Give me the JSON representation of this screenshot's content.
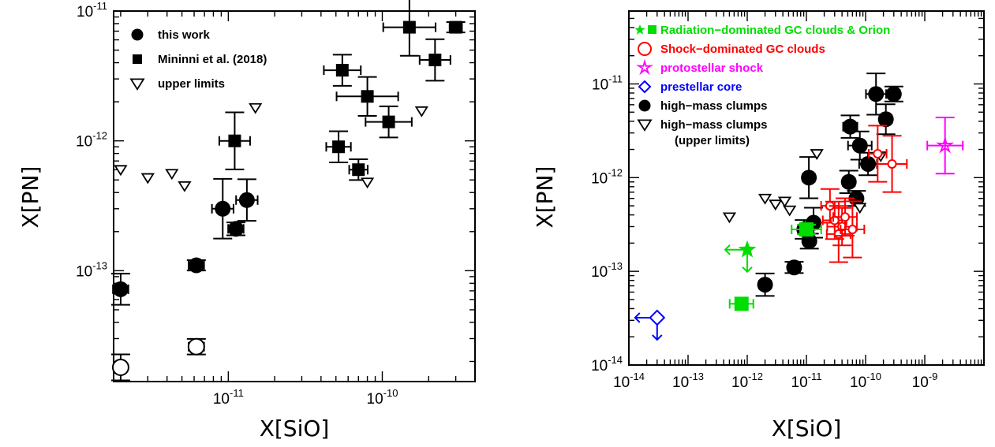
{
  "chart_data": [
    {
      "type": "scatter",
      "title": "",
      "xlabel": "X[SiO]",
      "ylabel": "X[PN]",
      "x_scale": "log",
      "y_scale": "log",
      "xlim": [
        1.8e-12,
        4e-10
      ],
      "ylim": [
        1.4e-14,
        1e-11
      ],
      "x_ticks": [
        "10-11",
        "10-10"
      ],
      "y_ticks": [
        "10-13",
        "10-12",
        "10-11"
      ],
      "legend": {
        "placement": "top-left",
        "entries": [
          {
            "marker": "filled-circle",
            "label": "this work"
          },
          {
            "marker": "filled-square",
            "label": "Mininni et al. (2018)"
          },
          {
            "marker": "open-down-triangle",
            "label": "upper limits"
          }
        ]
      },
      "series": [
        {
          "marker": "filled-circle",
          "points": [
            {
              "x": 2e-12,
              "y": 7.2e-14,
              "xerr": 0.05,
              "yerr": 0.12
            },
            {
              "x": 6.2e-12,
              "y": 1.1e-13,
              "xerr": 0.05,
              "yerr": 0.04
            },
            {
              "x": 9.2e-12,
              "y": 3e-13,
              "xerr": 0.07,
              "yerr": 0.23
            },
            {
              "x": 1.12e-11,
              "y": 2.1e-13,
              "xerr": 0.05,
              "yerr": 0.05
            },
            {
              "x": 1.32e-11,
              "y": 3.5e-13,
              "xerr": 0.07,
              "yerr": 0.16
            }
          ]
        },
        {
          "marker": "filled-square",
          "points": [
            {
              "x": 1.1e-11,
              "y": 1e-12,
              "xerr": 0.1,
              "yerr": 0.22
            },
            {
              "x": 5.2e-11,
              "y": 9e-13,
              "xerr": 0.08,
              "yerr": 0.12
            },
            {
              "x": 5.5e-11,
              "y": 3.5e-12,
              "xerr": 0.12,
              "yerr": 0.12
            },
            {
              "x": 7e-11,
              "y": 6e-13,
              "xerr": 0.06,
              "yerr": 0.08
            },
            {
              "x": 8e-11,
              "y": 2.2e-12,
              "xerr": 0.2,
              "yerr": 0.15
            },
            {
              "x": 1.1e-10,
              "y": 1.4e-12,
              "xerr": 0.15,
              "yerr": 0.12
            },
            {
              "x": 1.5e-10,
              "y": 7.5e-12,
              "xerr": 0.17,
              "yerr": 0.22
            },
            {
              "x": 2.2e-10,
              "y": 4.2e-12,
              "xerr": 0.1,
              "yerr": 0.16
            },
            {
              "x": 3e-10,
              "y": 7.5e-12,
              "xerr": 0.04,
              "yerr": 0.04
            }
          ]
        },
        {
          "marker": "open-down-triangle",
          "points": [
            {
              "x": 2e-12,
              "y": 6e-13
            },
            {
              "x": 3e-12,
              "y": 5.2e-13
            },
            {
              "x": 4.3e-12,
              "y": 5.6e-13
            },
            {
              "x": 5.2e-12,
              "y": 4.5e-13
            },
            {
              "x": 1.5e-11,
              "y": 1.8e-12
            },
            {
              "x": 8e-11,
              "y": 4.8e-13
            },
            {
              "x": 1.8e-10,
              "y": 1.7e-12
            }
          ]
        },
        {
          "marker": "open-circle",
          "points": [
            {
              "x": 2e-12,
              "y": 1.8e-14,
              "xerr": 0.04,
              "yerr": 0.1
            },
            {
              "x": 6.2e-12,
              "y": 2.6e-14,
              "xerr": 0.05,
              "yerr": 0.06
            }
          ]
        }
      ]
    },
    {
      "type": "scatter",
      "title": "",
      "xlabel": "X[SiO]",
      "ylabel": "X[PN]",
      "x_scale": "log",
      "y_scale": "log",
      "xlim": [
        1e-14,
        1e-08
      ],
      "ylim": [
        1e-14,
        6e-11
      ],
      "x_ticks": [
        "10-14",
        "10-13",
        "10-12",
        "10-11",
        "10-10",
        "10-9"
      ],
      "y_ticks": [
        "10-14",
        "10-13",
        "10-12",
        "10-11"
      ],
      "legend": {
        "placement": "top-left",
        "entries": [
          {
            "marker": "green-star-square",
            "label": "Radiation−dominated GC clouds & Orion",
            "color": "#00dd00"
          },
          {
            "marker": "red-open-circle",
            "label": "Shock−dominated GC clouds",
            "color": "#ff0000"
          },
          {
            "marker": "magenta-star",
            "label": "protostellar shock",
            "color": "#ff00ff"
          },
          {
            "marker": "blue-diamond",
            "label": "prestellar core",
            "color": "#0000ff"
          },
          {
            "marker": "filled-circle",
            "label": "high−mass clumps",
            "color": "#000000"
          },
          {
            "marker": "open-down-triangle",
            "label": "high−mass clumps",
            "label2": "(upper limits)",
            "color": "#000000"
          }
        ]
      },
      "series": [
        {
          "marker": "filled-circle",
          "color": "#000000",
          "points": [
            {
              "x": 2e-12,
              "y": 7.2e-14,
              "xerr": 0.1,
              "yerr": 0.12
            },
            {
              "x": 6.2e-12,
              "y": 1.1e-13,
              "xerr": 0.1,
              "yerr": 0.06
            },
            {
              "x": 9.2e-12,
              "y": 2.8e-13,
              "xerr": 0.08,
              "yerr": 0.1
            },
            {
              "x": 1.12e-11,
              "y": 2.1e-13,
              "xerr": 0.08,
              "yerr": 0.08
            },
            {
              "x": 1.32e-11,
              "y": 3.3e-13,
              "xerr": 0.1,
              "yerr": 0.16
            },
            {
              "x": 1.1e-11,
              "y": 1e-12,
              "xerr": 0.1,
              "yerr": 0.22
            },
            {
              "x": 5.2e-11,
              "y": 9e-13,
              "xerr": 0.1,
              "yerr": 0.12
            },
            {
              "x": 5.5e-11,
              "y": 3.5e-12,
              "xerr": 0.12,
              "yerr": 0.12
            },
            {
              "x": 7e-11,
              "y": 6e-13,
              "xerr": 0.08,
              "yerr": 0.08
            },
            {
              "x": 8e-11,
              "y": 2.2e-12,
              "xerr": 0.2,
              "yerr": 0.15
            },
            {
              "x": 1.1e-10,
              "y": 1.4e-12,
              "xerr": 0.15,
              "yerr": 0.12
            },
            {
              "x": 1.5e-10,
              "y": 7.8e-12,
              "xerr": 0.17,
              "yerr": 0.22
            },
            {
              "x": 2.2e-10,
              "y": 4.2e-12,
              "xerr": 0.1,
              "yerr": 0.16
            },
            {
              "x": 3e-10,
              "y": 7.8e-12,
              "xerr": 0.1,
              "yerr": 0.08
            }
          ]
        },
        {
          "marker": "open-down-triangle",
          "color": "#000000",
          "points": [
            {
              "x": 5e-13,
              "y": 3.8e-13
            },
            {
              "x": 2e-12,
              "y": 6e-13
            },
            {
              "x": 3e-12,
              "y": 5.2e-13
            },
            {
              "x": 4.3e-12,
              "y": 5.6e-13
            },
            {
              "x": 5.2e-12,
              "y": 4.5e-13
            },
            {
              "x": 1.5e-11,
              "y": 1.8e-12
            },
            {
              "x": 8e-11,
              "y": 4.8e-13
            },
            {
              "x": 1.8e-10,
              "y": 1.7e-12
            }
          ]
        },
        {
          "marker": "red-open-circle",
          "color": "#ff0000",
          "points": [
            {
              "x": 2.5e-11,
              "y": 5e-13,
              "xerr": 0.15,
              "yerr": 0.18
            },
            {
              "x": 3e-11,
              "y": 3.5e-13,
              "xerr": 0.2,
              "yerr": 0.2
            },
            {
              "x": 3.5e-11,
              "y": 2.5e-13,
              "xerr": 0.2,
              "yerr": 0.3
            },
            {
              "x": 4e-11,
              "y": 3e-13,
              "xerr": 0.25,
              "yerr": 0.2
            },
            {
              "x": 4.5e-11,
              "y": 3.8e-13,
              "xerr": 0.2,
              "yerr": 0.2
            },
            {
              "x": 6e-11,
              "y": 2.8e-13,
              "xerr": 0.2,
              "yerr": 0.3
            },
            {
              "x": 1.6e-10,
              "y": 1.8e-12,
              "xerr": 0.15,
              "yerr": 0.3
            },
            {
              "x": 2.8e-10,
              "y": 1.4e-12,
              "xerr": 0.25,
              "yerr": 0.3
            }
          ]
        },
        {
          "marker": "green-star",
          "color": "#00dd00",
          "limit": "upper-xy",
          "points": [
            {
              "x": 1e-12,
              "y": 1.7e-13
            }
          ]
        },
        {
          "marker": "green-square",
          "color": "#00dd00",
          "points": [
            {
              "x": 8e-13,
              "y": 4.5e-14,
              "xerr": 0.2,
              "yerr": 0
            },
            {
              "x": 1e-11,
              "y": 2.8e-13,
              "xerr": 0.25,
              "yerr": 0.05
            }
          ]
        },
        {
          "marker": "magenta-star",
          "color": "#ff00ff",
          "points": [
            {
              "x": 2.2e-09,
              "y": 2.2e-12,
              "xerr": 0.3,
              "yerr": 0.3
            }
          ]
        },
        {
          "marker": "blue-diamond",
          "color": "#0000ff",
          "limit": "upper-xy",
          "points": [
            {
              "x": 3e-14,
              "y": 3.2e-14
            }
          ]
        }
      ]
    }
  ]
}
